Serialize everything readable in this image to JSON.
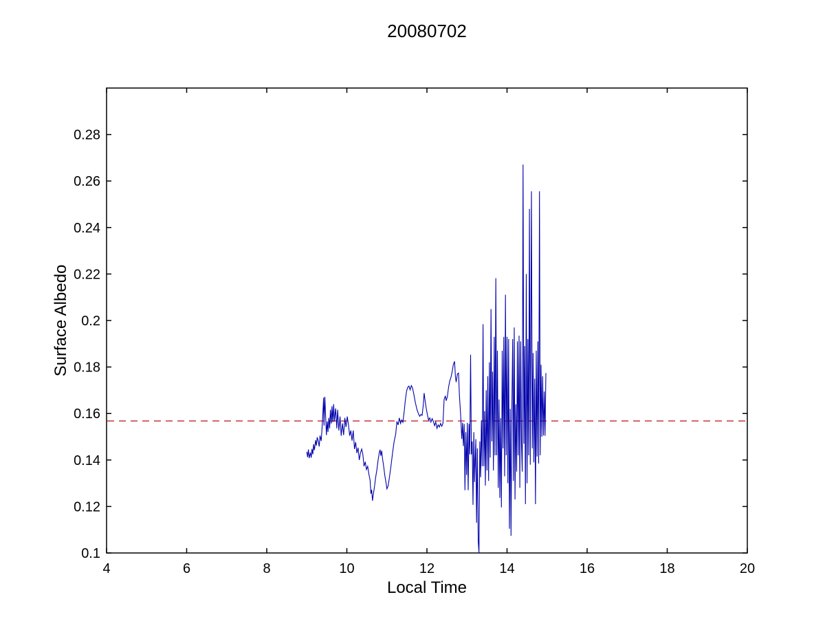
{
  "figure": {
    "background": "#ffffff",
    "axis_color": "#000000"
  },
  "chart_data": {
    "type": "line",
    "title": "20080702",
    "xlabel": "Local Time",
    "ylabel": "Surface Albedo",
    "xlim": [
      4,
      20
    ],
    "ylim": [
      0.1,
      0.3
    ],
    "grid": false,
    "legend": null,
    "x_ticks": {
      "values": [
        4,
        6,
        8,
        10,
        12,
        14,
        16,
        18,
        20
      ],
      "labels": [
        "4",
        "6",
        "8",
        "10",
        "12",
        "14",
        "16",
        "18",
        "20"
      ]
    },
    "y_ticks": {
      "values": [
        0.1,
        0.12,
        0.14,
        0.16,
        0.18,
        0.2,
        0.22,
        0.24,
        0.26,
        0.28
      ],
      "labels": [
        "0.1",
        "0.12",
        "0.14",
        "0.16",
        "0.18",
        "0.2",
        "0.22",
        "0.24",
        "0.26",
        "0.28"
      ]
    },
    "reference_line": {
      "name": "reference-hline",
      "value": 0.1568,
      "color": "#c0242c",
      "style": "dashed"
    },
    "series": [
      {
        "name": "surface-albedo",
        "color": "#0000aa",
        "style": "solid",
        "points": [
          [
            9.0,
            0.1435
          ],
          [
            9.02,
            0.1412
          ],
          [
            9.04,
            0.1445
          ],
          [
            9.06,
            0.1408
          ],
          [
            9.09,
            0.1432
          ],
          [
            9.11,
            0.141
          ],
          [
            9.13,
            0.1448
          ],
          [
            9.15,
            0.1425
          ],
          [
            9.17,
            0.1468
          ],
          [
            9.19,
            0.1442
          ],
          [
            9.22,
            0.1485
          ],
          [
            9.24,
            0.1462
          ],
          [
            9.26,
            0.1498
          ],
          [
            9.29,
            0.1478
          ],
          [
            9.31,
            0.1458
          ],
          [
            9.33,
            0.1505
          ],
          [
            9.36,
            0.1482
          ],
          [
            9.38,
            0.1535
          ],
          [
            9.4,
            0.16
          ],
          [
            9.42,
            0.1668
          ],
          [
            9.43,
            0.1548
          ],
          [
            9.45,
            0.1672
          ],
          [
            9.47,
            0.159
          ],
          [
            9.49,
            0.1507
          ],
          [
            9.51,
            0.1566
          ],
          [
            9.53,
            0.1521
          ],
          [
            9.55,
            0.1581
          ],
          [
            9.57,
            0.1536
          ],
          [
            9.59,
            0.1616
          ],
          [
            9.61,
            0.1557
          ],
          [
            9.63,
            0.1631
          ],
          [
            9.65,
            0.1563
          ],
          [
            9.67,
            0.164
          ],
          [
            9.69,
            0.1566
          ],
          [
            9.72,
            0.1622
          ],
          [
            9.75,
            0.1536
          ],
          [
            9.77,
            0.1616
          ],
          [
            9.8,
            0.1527
          ],
          [
            9.83,
            0.1587
          ],
          [
            9.86,
            0.1504
          ],
          [
            9.89,
            0.1557
          ],
          [
            9.92,
            0.1507
          ],
          [
            9.95,
            0.1581
          ],
          [
            9.98,
            0.1542
          ],
          [
            10.01,
            0.1587
          ],
          [
            10.04,
            0.1553
          ],
          [
            10.07,
            0.1504
          ],
          [
            10.1,
            0.1527
          ],
          [
            10.13,
            0.1483
          ],
          [
            10.16,
            0.1527
          ],
          [
            10.19,
            0.1447
          ],
          [
            10.22,
            0.1477
          ],
          [
            10.25,
            0.143
          ],
          [
            10.28,
            0.1453
          ],
          [
            10.31,
            0.14
          ],
          [
            10.34,
            0.143
          ],
          [
            10.37,
            0.1447
          ],
          [
            10.4,
            0.1424
          ],
          [
            10.43,
            0.1373
          ],
          [
            10.46,
            0.1392
          ],
          [
            10.49,
            0.1359
          ],
          [
            10.52,
            0.1373
          ],
          [
            10.55,
            0.134
          ],
          [
            10.58,
            0.1314
          ],
          [
            10.6,
            0.1255
          ],
          [
            10.62,
            0.1272
          ],
          [
            10.64,
            0.1225
          ],
          [
            10.66,
            0.125
          ],
          [
            10.69,
            0.1285
          ],
          [
            10.72,
            0.1325
          ],
          [
            10.75,
            0.1358
          ],
          [
            10.78,
            0.1398
          ],
          [
            10.81,
            0.1432
          ],
          [
            10.83,
            0.1444
          ],
          [
            10.85,
            0.1418
          ],
          [
            10.87,
            0.144
          ],
          [
            10.89,
            0.1408
          ],
          [
            10.92,
            0.1372
          ],
          [
            10.95,
            0.1332
          ],
          [
            10.98,
            0.13
          ],
          [
            11.0,
            0.1276
          ],
          [
            11.03,
            0.1288
          ],
          [
            11.06,
            0.132
          ],
          [
            11.1,
            0.1372
          ],
          [
            11.14,
            0.1428
          ],
          [
            11.18,
            0.1478
          ],
          [
            11.22,
            0.1512
          ],
          [
            11.25,
            0.1566
          ],
          [
            11.28,
            0.1551
          ],
          [
            11.31,
            0.1581
          ],
          [
            11.34,
            0.1557
          ],
          [
            11.37,
            0.1572
          ],
          [
            11.4,
            0.1562
          ],
          [
            11.43,
            0.1605
          ],
          [
            11.46,
            0.1655
          ],
          [
            11.49,
            0.1695
          ],
          [
            11.52,
            0.1712
          ],
          [
            11.55,
            0.1718
          ],
          [
            11.58,
            0.1702
          ],
          [
            11.61,
            0.172
          ],
          [
            11.64,
            0.171
          ],
          [
            11.67,
            0.1685
          ],
          [
            11.71,
            0.1648
          ],
          [
            11.75,
            0.1618
          ],
          [
            11.79,
            0.1598
          ],
          [
            11.82,
            0.1588
          ],
          [
            11.85,
            0.1596
          ],
          [
            11.88,
            0.1592
          ],
          [
            11.91,
            0.164
          ],
          [
            11.93,
            0.1688
          ],
          [
            11.95,
            0.166
          ],
          [
            11.98,
            0.1625
          ],
          [
            12.01,
            0.1596
          ],
          [
            12.04,
            0.1572
          ],
          [
            12.07,
            0.1581
          ],
          [
            12.1,
            0.1563
          ],
          [
            12.13,
            0.1578
          ],
          [
            12.16,
            0.1566
          ],
          [
            12.19,
            0.1548
          ],
          [
            12.22,
            0.1563
          ],
          [
            12.25,
            0.1536
          ],
          [
            12.28,
            0.1551
          ],
          [
            12.31,
            0.1542
          ],
          [
            12.34,
            0.1557
          ],
          [
            12.37,
            0.1545
          ],
          [
            12.4,
            0.1558
          ],
          [
            12.43,
            0.166
          ],
          [
            12.46,
            0.1676
          ],
          [
            12.48,
            0.1655
          ],
          [
            12.51,
            0.1672
          ],
          [
            12.54,
            0.1714
          ],
          [
            12.57,
            0.174
          ],
          [
            12.6,
            0.1756
          ],
          [
            12.63,
            0.178
          ],
          [
            12.66,
            0.181
          ],
          [
            12.69,
            0.1824
          ],
          [
            12.71,
            0.1759
          ],
          [
            12.73,
            0.1735
          ],
          [
            12.76,
            0.177
          ],
          [
            12.79,
            0.1774
          ],
          [
            12.81,
            0.168
          ],
          [
            12.84,
            0.16
          ],
          [
            12.87,
            0.149
          ],
          [
            12.89,
            0.156
          ],
          [
            12.91,
            0.146
          ],
          [
            12.93,
            0.1555
          ],
          [
            12.95,
            0.127
          ],
          [
            12.97,
            0.152
          ],
          [
            12.99,
            0.1335
          ],
          [
            13.01,
            0.156
          ],
          [
            13.03,
            0.127
          ],
          [
            13.05,
            0.1555
          ],
          [
            13.07,
            0.1424
          ],
          [
            13.09,
            0.1853
          ],
          [
            13.11,
            0.1424
          ],
          [
            13.13,
            0.148
          ],
          [
            13.15,
            0.1207
          ],
          [
            13.17,
            0.152
          ],
          [
            13.19,
            0.1305
          ],
          [
            13.22,
            0.149
          ],
          [
            13.24,
            0.113
          ],
          [
            13.26,
            0.145
          ],
          [
            13.28,
            0.105
          ],
          [
            13.3,
            0.1002
          ],
          [
            13.32,
            0.148
          ],
          [
            13.34,
            0.1326
          ],
          [
            13.36,
            0.157
          ],
          [
            13.38,
            0.1373
          ],
          [
            13.4,
            0.1984
          ],
          [
            13.42,
            0.1373
          ],
          [
            13.44,
            0.161
          ],
          [
            13.46,
            0.129
          ],
          [
            13.48,
            0.17
          ],
          [
            13.5,
            0.1355
          ],
          [
            13.52,
            0.176
          ],
          [
            13.54,
            0.131
          ],
          [
            13.56,
            0.182
          ],
          [
            13.58,
            0.141
          ],
          [
            13.6,
            0.2049
          ],
          [
            13.62,
            0.148
          ],
          [
            13.64,
            0.178
          ],
          [
            13.66,
            0.1355
          ],
          [
            13.68,
            0.193
          ],
          [
            13.7,
            0.142
          ],
          [
            13.72,
            0.2182
          ],
          [
            13.74,
            0.142
          ],
          [
            13.76,
            0.187
          ],
          [
            13.78,
            0.128
          ],
          [
            13.8,
            0.166
          ],
          [
            13.82,
            0.1237
          ],
          [
            13.84,
            0.158
          ],
          [
            13.86,
            0.1196
          ],
          [
            13.88,
            0.187
          ],
          [
            13.9,
            0.145
          ],
          [
            13.92,
            0.193
          ],
          [
            13.94,
            0.133
          ],
          [
            13.96,
            0.2111
          ],
          [
            13.98,
            0.142
          ],
          [
            14.0,
            0.193
          ],
          [
            14.02,
            0.13
          ],
          [
            14.04,
            0.192
          ],
          [
            14.06,
            0.1104
          ],
          [
            14.08,
            0.162
          ],
          [
            14.1,
            0.1074
          ],
          [
            14.12,
            0.162
          ],
          [
            14.14,
            0.192
          ],
          [
            14.16,
            0.131
          ],
          [
            14.18,
            0.197
          ],
          [
            14.2,
            0.123
          ],
          [
            14.22,
            0.164
          ],
          [
            14.24,
            0.135
          ],
          [
            14.26,
            0.191
          ],
          [
            14.28,
            0.142
          ],
          [
            14.3,
            0.1935
          ],
          [
            14.32,
            0.128
          ],
          [
            14.34,
            0.191
          ],
          [
            14.36,
            0.147
          ],
          [
            14.38,
            0.135
          ],
          [
            14.4,
            0.2671
          ],
          [
            14.42,
            0.147
          ],
          [
            14.44,
            0.189
          ],
          [
            14.46,
            0.121
          ],
          [
            14.48,
            0.22
          ],
          [
            14.5,
            0.13
          ],
          [
            14.52,
            0.192
          ],
          [
            14.54,
            0.142
          ],
          [
            14.56,
            0.248
          ],
          [
            14.58,
            0.138
          ],
          [
            14.61,
            0.2556
          ],
          [
            14.63,
            0.145
          ],
          [
            14.65,
            0.186
          ],
          [
            14.67,
            0.139
          ],
          [
            14.69,
            0.175
          ],
          [
            14.71,
            0.121
          ],
          [
            14.73,
            0.187
          ],
          [
            14.75,
            0.1415
          ],
          [
            14.77,
            0.191
          ],
          [
            14.79,
            0.1385
          ],
          [
            14.81,
            0.2556
          ],
          [
            14.83,
            0.142
          ],
          [
            14.85,
            0.181
          ],
          [
            14.87,
            0.15
          ],
          [
            14.89,
            0.176
          ],
          [
            14.91,
            0.1505
          ],
          [
            14.93,
            0.1695
          ],
          [
            14.95,
            0.1504
          ],
          [
            14.97,
            0.1774
          ]
        ]
      }
    ]
  }
}
